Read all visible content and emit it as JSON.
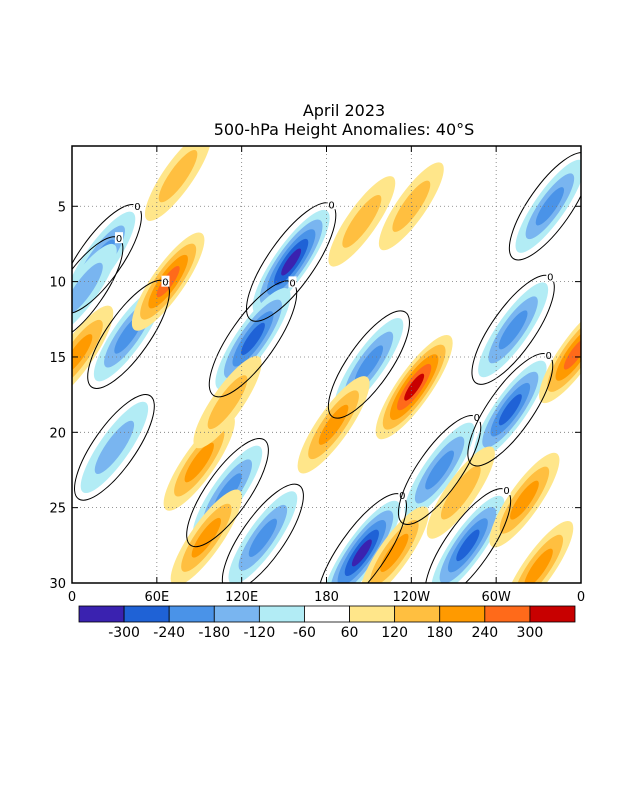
{
  "chart_data": {
    "type": "heatmap",
    "title": "April 2023",
    "subtitle": "500-hPa Height Anomalies: 40°S",
    "x_ticks": [
      "0",
      "60E",
      "120E",
      "180",
      "120W",
      "60W",
      "0"
    ],
    "y_ticks": [
      "5",
      "10",
      "15",
      "20",
      "25",
      "30"
    ],
    "ylim": [
      1,
      30
    ],
    "y_inverted": true,
    "colorbar": {
      "levels": [
        "-300",
        "-240",
        "-180",
        "-120",
        "-60",
        "60",
        "120",
        "180",
        "240",
        "300"
      ],
      "colors": [
        "#3a22b0",
        "#1f62d6",
        "#4a93e8",
        "#79b5f0",
        "#b2ecf5",
        "#ffffff",
        "#ffe68a",
        "#ffbf40",
        "#ff9a00",
        "#ff6a1a",
        "#c80000"
      ]
    },
    "contour_labels": [
      "0",
      "0",
      "0",
      "0",
      "0",
      "0",
      "0",
      "0",
      "0",
      "0",
      "0"
    ],
    "anomaly_features": [
      {
        "lon": 155,
        "day": 8.7,
        "value": -310,
        "kind": "low"
      },
      {
        "lon": 128,
        "day": 13.8,
        "value": -280,
        "kind": "low"
      },
      {
        "lon": 20,
        "day": 8.5,
        "value": -200,
        "kind": "low"
      },
      {
        "lon": 40,
        "day": 13.5,
        "value": -190,
        "kind": "low"
      },
      {
        "lon": 8,
        "day": 10.5,
        "value": -150,
        "kind": "low"
      },
      {
        "lon": 205,
        "day": 28,
        "value": -310,
        "kind": "low"
      },
      {
        "lon": 280,
        "day": 27.5,
        "value": -250,
        "kind": "low"
      },
      {
        "lon": 260,
        "day": 22.5,
        "value": -200,
        "kind": "low"
      },
      {
        "lon": 310,
        "day": 18.5,
        "value": -240,
        "kind": "low"
      },
      {
        "lon": 312,
        "day": 13.2,
        "value": -200,
        "kind": "low"
      },
      {
        "lon": 338,
        "day": 5,
        "value": -180,
        "kind": "low"
      },
      {
        "lon": 210,
        "day": 15.5,
        "value": -180,
        "kind": "low"
      },
      {
        "lon": 30,
        "day": 21,
        "value": -160,
        "kind": "low"
      },
      {
        "lon": 110,
        "day": 24,
        "value": -190,
        "kind": "low"
      },
      {
        "lon": 135,
        "day": 27,
        "value": -180,
        "kind": "low"
      },
      {
        "lon": 242,
        "day": 17,
        "value": 310,
        "kind": "high"
      },
      {
        "lon": 68,
        "day": 10,
        "value": 240,
        "kind": "high"
      },
      {
        "lon": 90,
        "day": 22,
        "value": 220,
        "kind": "high"
      },
      {
        "lon": 95,
        "day": 27,
        "value": 220,
        "kind": "high"
      },
      {
        "lon": 185,
        "day": 19.5,
        "value": 230,
        "kind": "high"
      },
      {
        "lon": 4,
        "day": 14.8,
        "value": 220,
        "kind": "high"
      },
      {
        "lon": 356,
        "day": 14.8,
        "value": 240,
        "kind": "high"
      },
      {
        "lon": 320,
        "day": 24.5,
        "value": 200,
        "kind": "high"
      },
      {
        "lon": 275,
        "day": 24,
        "value": 170,
        "kind": "high"
      },
      {
        "lon": 330,
        "day": 29,
        "value": 190,
        "kind": "high"
      },
      {
        "lon": 110,
        "day": 18,
        "value": 170,
        "kind": "high"
      },
      {
        "lon": 205,
        "day": 6,
        "value": 150,
        "kind": "high"
      },
      {
        "lon": 228,
        "day": 28,
        "value": 180,
        "kind": "high"
      },
      {
        "lon": 240,
        "day": 5,
        "value": 120,
        "kind": "high"
      },
      {
        "lon": 75,
        "day": 3,
        "value": 140,
        "kind": "high"
      }
    ]
  }
}
